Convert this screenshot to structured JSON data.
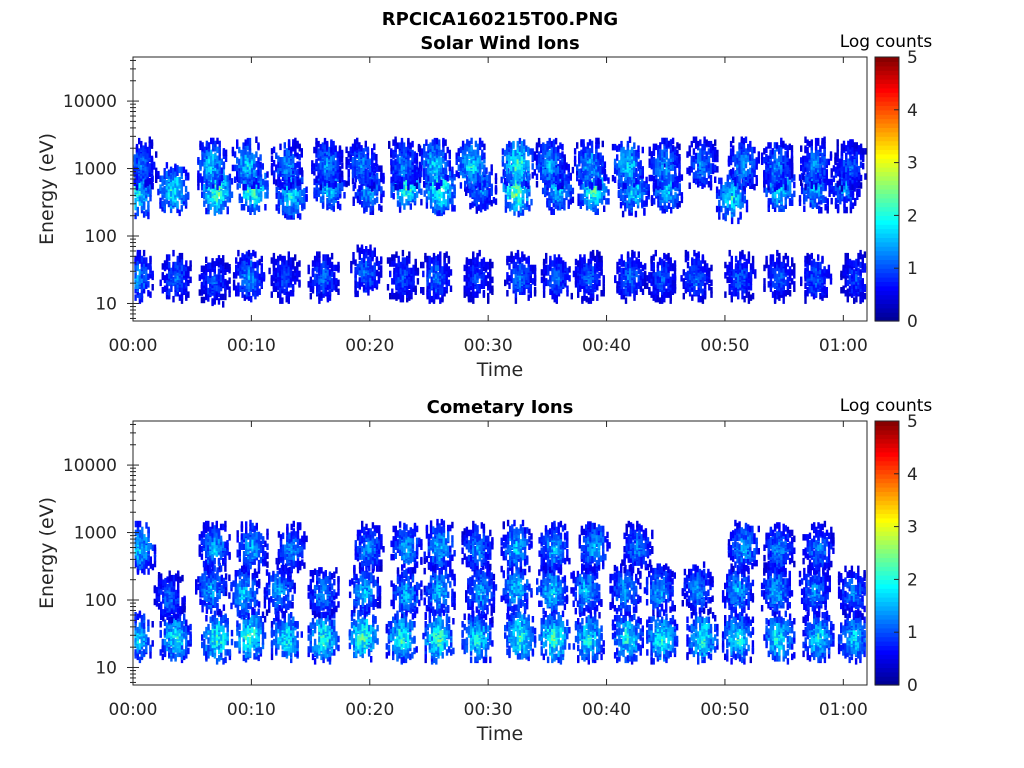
{
  "figure_title": "RPCICA160215T00.PNG",
  "colors": {
    "colormap": [
      "#00008f",
      "#0000ff",
      "#0080ff",
      "#00ffff",
      "#80ff80",
      "#ffff00",
      "#ff8000",
      "#ff0000",
      "#800000"
    ],
    "axes": "#262626"
  },
  "chart_data": [
    {
      "type": "heatmap",
      "title": "Solar Wind Ions",
      "xlabel": "Time",
      "ylabel": "Energy (eV)",
      "y_scale": "log",
      "ylim": [
        5.5,
        45000
      ],
      "xlim": [
        "00:00",
        "01:02"
      ],
      "xticks": [
        "00:00",
        "00:10",
        "00:20",
        "00:30",
        "00:40",
        "00:50",
        "01:00"
      ],
      "yticks": [
        "10",
        "100",
        "1000",
        "10000"
      ],
      "colorbar": {
        "label": "Log counts",
        "range": [
          0,
          5
        ],
        "ticks": [
          "0",
          "1",
          "2",
          "3",
          "4",
          "5"
        ]
      },
      "cell_minutes": 0.2,
      "clusters": [
        {
          "t": 0.3,
          "e": 450,
          "max": 2.6
        },
        {
          "t": 3.3,
          "e": 500,
          "max": 2.6
        },
        {
          "t": 7.0,
          "e": 480,
          "max": 3.1
        },
        {
          "t": 10.0,
          "e": 520,
          "max": 3.0
        },
        {
          "t": 13.3,
          "e": 420,
          "max": 2.4
        },
        {
          "t": 16.5,
          "e": 550,
          "max": 2.2
        },
        {
          "t": 19.8,
          "e": 520,
          "max": 2.0
        },
        {
          "t": 23.0,
          "e": 560,
          "max": 2.8
        },
        {
          "t": 25.8,
          "e": 500,
          "max": 3.0
        },
        {
          "t": 29.3,
          "e": 540,
          "max": 1.8
        },
        {
          "t": 32.3,
          "e": 480,
          "max": 3.1
        },
        {
          "t": 35.8,
          "e": 520,
          "max": 2.2
        },
        {
          "t": 38.8,
          "e": 520,
          "max": 2.8
        },
        {
          "t": 42.2,
          "e": 480,
          "max": 2.3
        },
        {
          "t": 45.0,
          "e": 520,
          "max": 2.2
        },
        {
          "t": 50.5,
          "e": 380,
          "max": 2.4
        },
        {
          "t": 54.5,
          "e": 520,
          "max": 2.4
        },
        {
          "t": 57.5,
          "e": 520,
          "max": 2.0
        },
        {
          "t": 60.0,
          "e": 550,
          "max": 1.8
        }
      ],
      "high_clusters": [
        {
          "t": 0.6,
          "e": 1200,
          "max": 1.6
        },
        {
          "t": 6.5,
          "e": 1150,
          "max": 2.2
        },
        {
          "t": 9.6,
          "e": 1200,
          "max": 2.2
        },
        {
          "t": 12.9,
          "e": 1150,
          "max": 1.8
        },
        {
          "t": 16.3,
          "e": 1200,
          "max": 1.8
        },
        {
          "t": 19.2,
          "e": 1150,
          "max": 1.8
        },
        {
          "t": 22.8,
          "e": 1200,
          "max": 1.7
        },
        {
          "t": 25.4,
          "e": 1200,
          "max": 2.3
        },
        {
          "t": 28.5,
          "e": 1150,
          "max": 2.4
        },
        {
          "t": 32.4,
          "e": 1200,
          "max": 2.8
        },
        {
          "t": 35.1,
          "e": 1200,
          "max": 2.0
        },
        {
          "t": 38.5,
          "e": 1150,
          "max": 2.0
        },
        {
          "t": 41.7,
          "e": 1200,
          "max": 2.3
        },
        {
          "t": 44.8,
          "e": 1150,
          "max": 2.0
        },
        {
          "t": 48.0,
          "e": 1200,
          "max": 1.7
        },
        {
          "t": 51.5,
          "e": 1200,
          "max": 1.9
        },
        {
          "t": 54.3,
          "e": 1150,
          "max": 1.8
        },
        {
          "t": 57.6,
          "e": 1200,
          "max": 1.8
        },
        {
          "t": 60.5,
          "e": 1150,
          "max": 1.5
        }
      ],
      "low_clusters": [
        {
          "t": 0.3,
          "e": 25,
          "max": 1.8
        },
        {
          "t": 3.5,
          "e": 25,
          "max": 1.6
        },
        {
          "t": 6.8,
          "e": 22,
          "max": 1.4
        },
        {
          "t": 9.7,
          "e": 25,
          "max": 1.8
        },
        {
          "t": 12.7,
          "e": 25,
          "max": 1.3
        },
        {
          "t": 16.0,
          "e": 25,
          "max": 1.5
        },
        {
          "t": 19.6,
          "e": 30,
          "max": 1.6
        },
        {
          "t": 22.7,
          "e": 25,
          "max": 1.4
        },
        {
          "t": 25.5,
          "e": 25,
          "max": 1.6
        },
        {
          "t": 29.0,
          "e": 25,
          "max": 1.3
        },
        {
          "t": 32.6,
          "e": 25,
          "max": 1.6
        },
        {
          "t": 35.7,
          "e": 25,
          "max": 1.5
        },
        {
          "t": 38.4,
          "e": 25,
          "max": 1.5
        },
        {
          "t": 41.9,
          "e": 25,
          "max": 1.6
        },
        {
          "t": 44.6,
          "e": 25,
          "max": 1.4
        },
        {
          "t": 47.5,
          "e": 25,
          "max": 1.5
        },
        {
          "t": 51.2,
          "e": 25,
          "max": 1.5
        },
        {
          "t": 54.5,
          "e": 25,
          "max": 1.4
        },
        {
          "t": 57.6,
          "e": 25,
          "max": 1.5
        },
        {
          "t": 61.0,
          "e": 25,
          "max": 1.3
        }
      ]
    },
    {
      "type": "heatmap",
      "title": "Cometary Ions",
      "xlabel": "Time",
      "ylabel": "Energy (eV)",
      "y_scale": "log",
      "ylim": [
        5.5,
        45000
      ],
      "xlim": [
        "00:00",
        "01:02"
      ],
      "xticks": [
        "00:00",
        "00:10",
        "00:20",
        "00:30",
        "00:40",
        "00:50",
        "01:00"
      ],
      "yticks": [
        "10",
        "100",
        "1000",
        "10000"
      ],
      "colorbar": {
        "label": "Log counts",
        "range": [
          0,
          5
        ],
        "ticks": [
          "0",
          "1",
          "2",
          "3",
          "4",
          "5"
        ]
      },
      "cell_minutes": 0.2,
      "clusters": [
        {
          "t": 0.3,
          "e": 28,
          "max": 2.3
        },
        {
          "t": 3.5,
          "e": 28,
          "max": 2.5
        },
        {
          "t": 7.0,
          "e": 28,
          "max": 2.8
        },
        {
          "t": 9.8,
          "e": 30,
          "max": 2.9
        },
        {
          "t": 12.9,
          "e": 28,
          "max": 2.6
        },
        {
          "t": 16.0,
          "e": 28,
          "max": 2.8
        },
        {
          "t": 19.3,
          "e": 30,
          "max": 3.0
        },
        {
          "t": 22.6,
          "e": 28,
          "max": 2.7
        },
        {
          "t": 25.7,
          "e": 28,
          "max": 2.9
        },
        {
          "t": 29.0,
          "e": 28,
          "max": 2.6
        },
        {
          "t": 32.6,
          "e": 30,
          "max": 2.9
        },
        {
          "t": 35.5,
          "e": 28,
          "max": 3.0
        },
        {
          "t": 38.4,
          "e": 28,
          "max": 2.6
        },
        {
          "t": 41.7,
          "e": 28,
          "max": 2.6
        },
        {
          "t": 44.6,
          "e": 28,
          "max": 2.7
        },
        {
          "t": 48.0,
          "e": 28,
          "max": 2.7
        },
        {
          "t": 51.0,
          "e": 28,
          "max": 2.5
        },
        {
          "t": 54.5,
          "e": 28,
          "max": 2.6
        },
        {
          "t": 57.8,
          "e": 28,
          "max": 2.4
        },
        {
          "t": 60.8,
          "e": 28,
          "max": 2.3
        }
      ],
      "mid_clusters": [
        {
          "t": 3.0,
          "e": 110,
          "max": 1.6
        },
        {
          "t": 6.5,
          "e": 150,
          "max": 2.0
        },
        {
          "t": 9.3,
          "e": 130,
          "max": 2.2
        },
        {
          "t": 12.3,
          "e": 140,
          "max": 2.0
        },
        {
          "t": 16.0,
          "e": 130,
          "max": 1.8
        },
        {
          "t": 19.5,
          "e": 140,
          "max": 2.1
        },
        {
          "t": 23.0,
          "e": 130,
          "max": 2.0
        },
        {
          "t": 25.8,
          "e": 140,
          "max": 2.2
        },
        {
          "t": 29.3,
          "e": 140,
          "max": 2.0
        },
        {
          "t": 32.3,
          "e": 150,
          "max": 2.2
        },
        {
          "t": 35.3,
          "e": 140,
          "max": 2.3
        },
        {
          "t": 38.2,
          "e": 140,
          "max": 2.1
        },
        {
          "t": 41.5,
          "e": 140,
          "max": 1.9
        },
        {
          "t": 44.4,
          "e": 140,
          "max": 2.0
        },
        {
          "t": 47.6,
          "e": 150,
          "max": 1.8
        },
        {
          "t": 51.0,
          "e": 140,
          "max": 2.0
        },
        {
          "t": 54.3,
          "e": 140,
          "max": 2.0
        },
        {
          "t": 57.5,
          "e": 140,
          "max": 1.8
        },
        {
          "t": 60.8,
          "e": 130,
          "max": 1.7
        }
      ],
      "high_clusters": [
        {
          "t": 0.5,
          "e": 600,
          "max": 2.2
        },
        {
          "t": 6.8,
          "e": 600,
          "max": 2.0
        },
        {
          "t": 10.0,
          "e": 620,
          "max": 2.0
        },
        {
          "t": 13.3,
          "e": 600,
          "max": 1.8
        },
        {
          "t": 19.8,
          "e": 600,
          "max": 1.8
        },
        {
          "t": 23.0,
          "e": 620,
          "max": 2.0
        },
        {
          "t": 25.8,
          "e": 640,
          "max": 2.1
        },
        {
          "t": 29.0,
          "e": 600,
          "max": 1.8
        },
        {
          "t": 32.3,
          "e": 620,
          "max": 2.1
        },
        {
          "t": 35.5,
          "e": 600,
          "max": 2.0
        },
        {
          "t": 38.9,
          "e": 620,
          "max": 2.0
        },
        {
          "t": 42.5,
          "e": 600,
          "max": 1.7
        },
        {
          "t": 51.5,
          "e": 620,
          "max": 2.0
        },
        {
          "t": 54.5,
          "e": 600,
          "max": 1.8
        },
        {
          "t": 57.8,
          "e": 600,
          "max": 1.7
        }
      ]
    }
  ]
}
